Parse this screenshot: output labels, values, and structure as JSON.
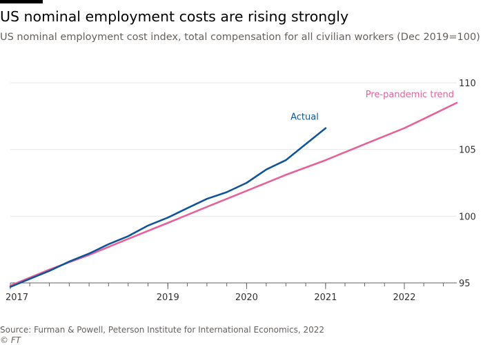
{
  "header": {
    "title": "US nominal employment costs are rising strongly",
    "subtitle": "US nominal employment cost index, total compensation for all civilian workers (Dec 2019=100)"
  },
  "footer": {
    "source": "Source: Furman & Powell, Peterson Institute for International Economics, 2022",
    "copyright_symbol": "©",
    "copyright_brand": "FT"
  },
  "colors": {
    "actual": "#0f5499",
    "trend": "#e8609a",
    "grid": "#e6e6e6",
    "axis": "#66605c",
    "text": "#33302e"
  },
  "chart_data": {
    "type": "line",
    "xlim": [
      "2017-01-01",
      "2022-09-01"
    ],
    "ylim": [
      95,
      110
    ],
    "y_ticks": [
      95,
      100,
      105,
      110
    ],
    "x_ticks": [
      {
        "date": "2017-01-01",
        "label": "2017"
      },
      {
        "date": "2019-01-01",
        "label": "2019"
      },
      {
        "date": "2020-01-01",
        "label": "2020"
      },
      {
        "date": "2021-01-01",
        "label": "2021"
      },
      {
        "date": "2022-01-01",
        "label": "2022"
      }
    ],
    "x_tick_marks": [
      "2017-01-01",
      "2017-04-01",
      "2017-07-01",
      "2017-10-01",
      "2018-01-01",
      "2018-04-01",
      "2018-07-01",
      "2018-10-01",
      "2019-01-01",
      "2019-04-01",
      "2019-07-01",
      "2019-10-01",
      "2020-01-01",
      "2020-04-01",
      "2020-07-01",
      "2020-10-01",
      "2021-01-01",
      "2021-04-01",
      "2021-07-01",
      "2021-10-01",
      "2022-01-01",
      "2022-04-01",
      "2022-07-01"
    ],
    "y_axis_side": "right",
    "grid": true,
    "series": [
      {
        "name": "Pre-pandemic trend",
        "color": "#e8609a",
        "points": [
          {
            "x": "2017-01-01",
            "y": 94.8
          },
          {
            "x": "2017-07-01",
            "y": 96.0
          },
          {
            "x": "2018-01-01",
            "y": 97.1
          },
          {
            "x": "2018-07-01",
            "y": 98.3
          },
          {
            "x": "2019-01-01",
            "y": 99.5
          },
          {
            "x": "2019-07-01",
            "y": 100.7
          },
          {
            "x": "2020-01-01",
            "y": 101.9
          },
          {
            "x": "2020-07-01",
            "y": 103.1
          },
          {
            "x": "2021-01-01",
            "y": 104.2
          },
          {
            "x": "2021-07-01",
            "y": 105.4
          },
          {
            "x": "2022-01-01",
            "y": 106.6
          },
          {
            "x": "2022-04-01",
            "y": 107.3
          },
          {
            "x": "2022-09-01",
            "y": 108.5
          }
        ]
      },
      {
        "name": "Actual",
        "color": "#0f5499",
        "points": [
          {
            "x": "2017-01-01",
            "y": 94.7
          },
          {
            "x": "2017-04-01",
            "y": 95.3
          },
          {
            "x": "2017-07-01",
            "y": 95.9
          },
          {
            "x": "2017-10-01",
            "y": 96.6
          },
          {
            "x": "2018-01-01",
            "y": 97.2
          },
          {
            "x": "2018-04-01",
            "y": 97.9
          },
          {
            "x": "2018-07-01",
            "y": 98.5
          },
          {
            "x": "2018-10-01",
            "y": 99.3
          },
          {
            "x": "2019-01-01",
            "y": 99.9
          },
          {
            "x": "2019-04-01",
            "y": 100.6
          },
          {
            "x": "2019-07-01",
            "y": 101.3
          },
          {
            "x": "2019-10-01",
            "y": 101.8
          },
          {
            "x": "2020-01-01",
            "y": 102.5
          },
          {
            "x": "2020-04-01",
            "y": 103.5
          },
          {
            "x": "2020-07-01",
            "y": 104.2
          },
          {
            "x": "2020-10-01",
            "y": 105.4
          },
          {
            "x": "2021-01-01",
            "y": 106.6
          }
        ]
      }
    ],
    "annotations": [
      {
        "series": "Pre-pandemic trend",
        "text": "Pre-pandemic trend",
        "color": "#e8609a"
      },
      {
        "series": "Actual",
        "text": "Actual",
        "color": "#0f5499"
      }
    ]
  }
}
